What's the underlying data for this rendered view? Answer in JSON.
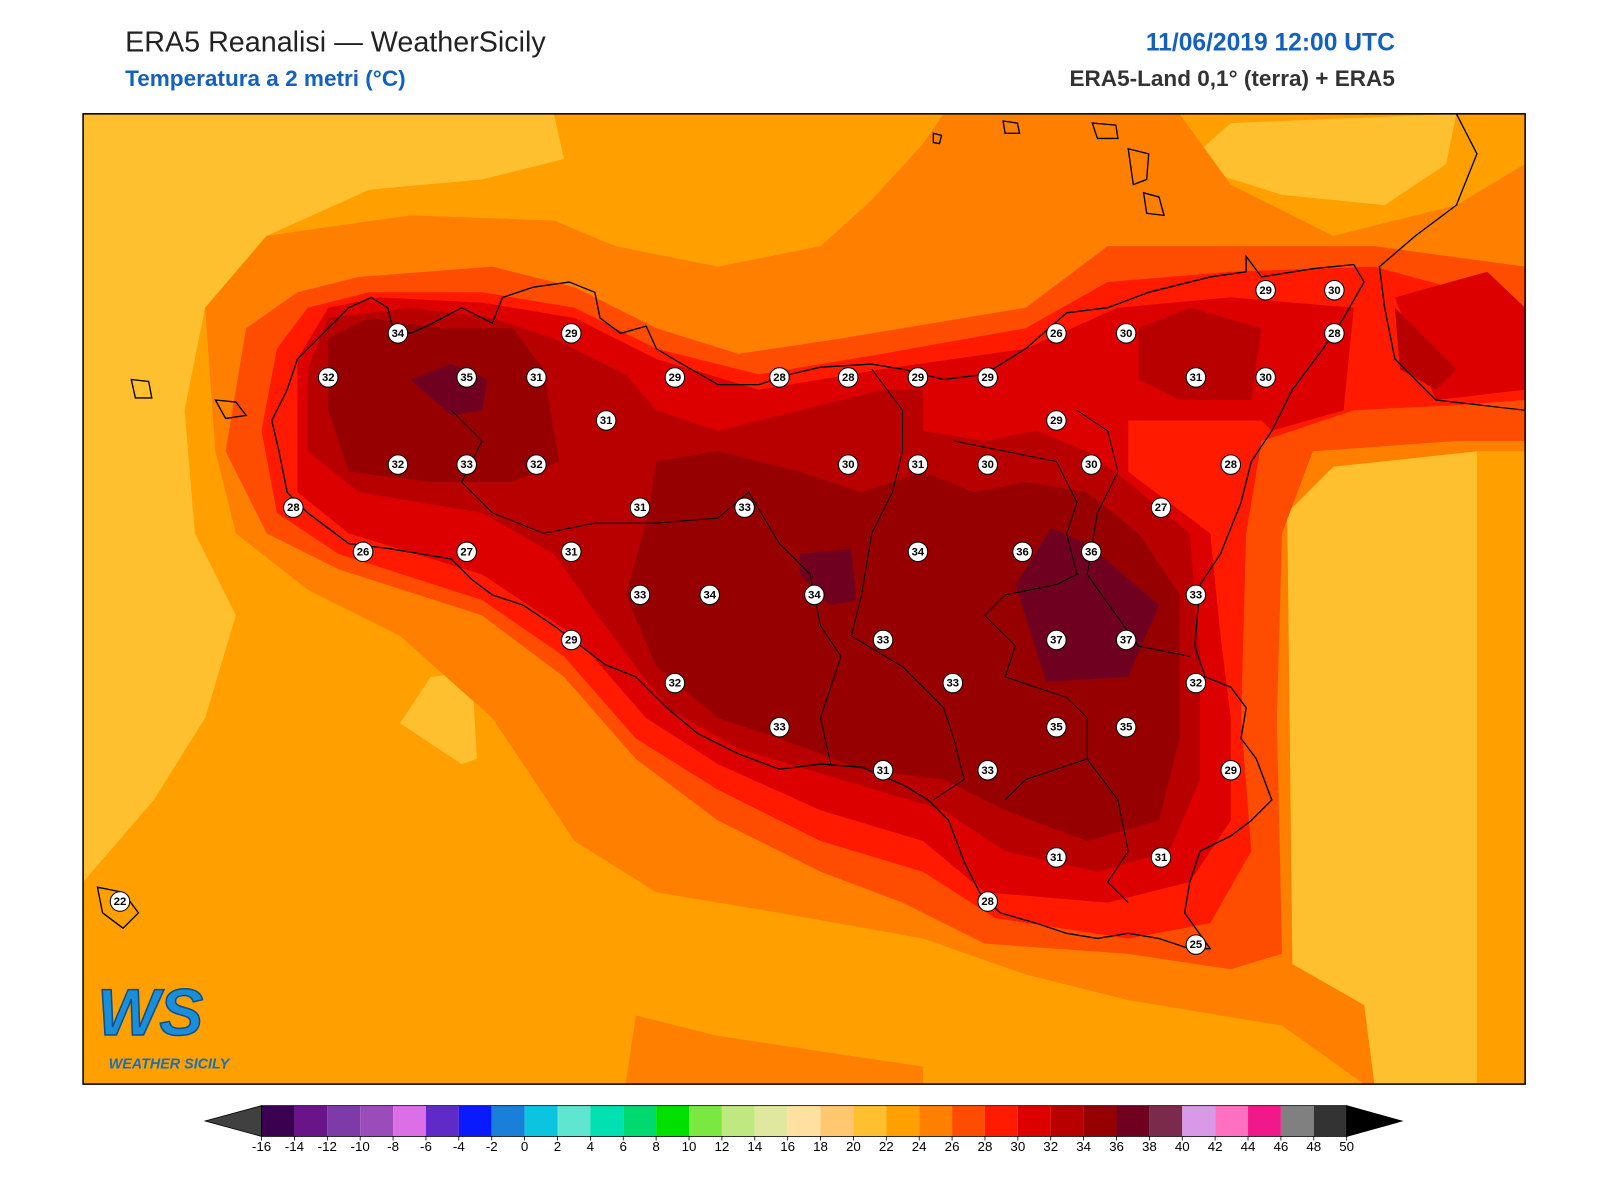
{
  "header": {
    "title": "ERA5 Reanalisi — WeatherSicily",
    "subtitle": "Temperatura a 2 metri (°C)",
    "datetime": "11/06/2019 12:00 UTC",
    "source": "ERA5-Land 0,1° (terra) + ERA5"
  },
  "logo": {
    "mark": "WS",
    "name": "WEATHER SICILY"
  },
  "stations": [
    34,
    29,
    32,
    35,
    31,
    29,
    28,
    28,
    29,
    29,
    31,
    32,
    33,
    32,
    30,
    31,
    30,
    28,
    31,
    33,
    26,
    27,
    31,
    33,
    34,
    34,
    29,
    32,
    33,
    33,
    33,
    31,
    33,
    34,
    36,
    36,
    37,
    37,
    35,
    35,
    33,
    32,
    29,
    31,
    31,
    28,
    25,
    29,
    30,
    27,
    28,
    26,
    30,
    31,
    30,
    29,
    30,
    28,
    22
  ],
  "colorbar": {
    "ticks": [
      -16,
      -14,
      -12,
      -10,
      -8,
      -6,
      -4,
      -2,
      0,
      2,
      4,
      6,
      8,
      10,
      12,
      14,
      16,
      18,
      20,
      22,
      24,
      26,
      28,
      30,
      32,
      34,
      36,
      38,
      40,
      42,
      44,
      46,
      48,
      50
    ],
    "colors": [
      "#3c0050",
      "#6a148a",
      "#7e3aa6",
      "#9a4cba",
      "#dc6fe6",
      "#5f2ac8",
      "#0a1aff",
      "#1a7fd8",
      "#0cc4e0",
      "#5ee6d0",
      "#00e0b0",
      "#00d870",
      "#00e000",
      "#7ae840",
      "#c0e880",
      "#e0e8a0",
      "#ffe0a0",
      "#ffc870",
      "#ffc030",
      "#ffa000",
      "#ff7f00",
      "#ff4d00",
      "#ff1a00",
      "#dc0000",
      "#b80000",
      "#960000",
      "#700020",
      "#7a2a4a",
      "#d89ae8",
      "#ff70c0",
      "#f0188a",
      "#808080",
      "#333333"
    ],
    "under_color": "#404040",
    "over_color": "#000000"
  }
}
